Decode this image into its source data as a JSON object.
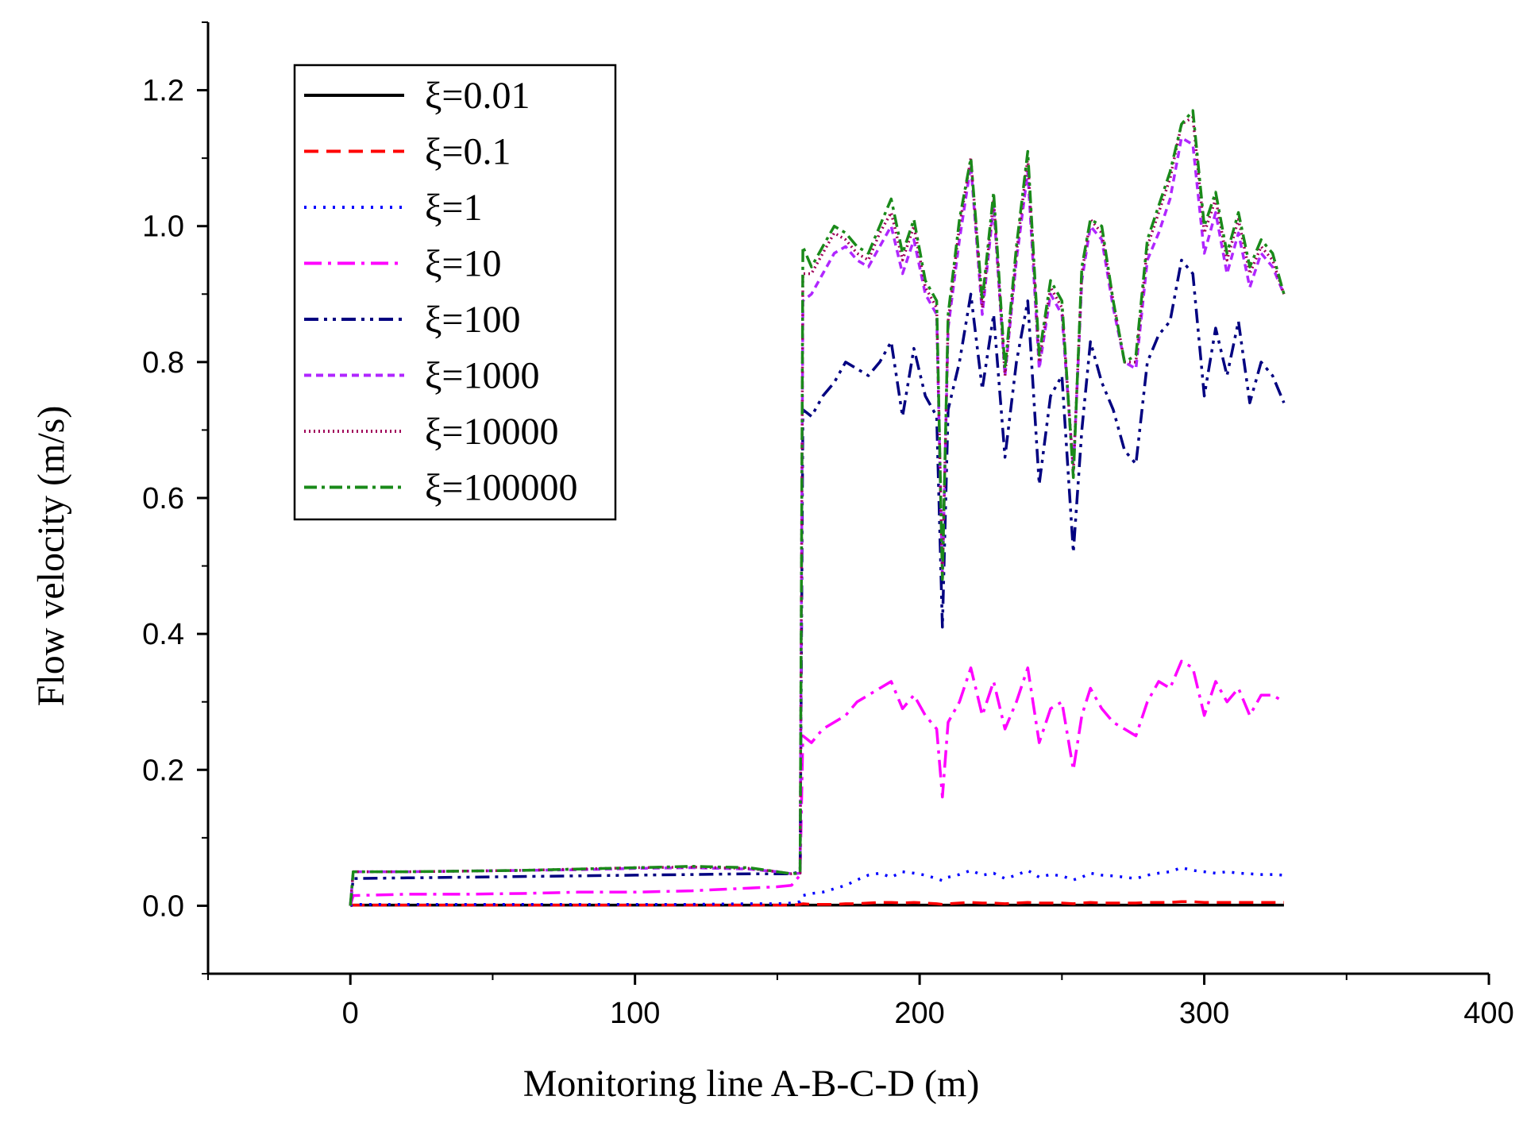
{
  "chart_data": {
    "type": "line",
    "title": "",
    "xlabel": "Monitoring line A-B-C-D (m)",
    "ylabel": "Flow velocity (m/s)",
    "xlim": [
      -50,
      400
    ],
    "ylim": [
      -0.1,
      1.3
    ],
    "xticks": [
      0,
      100,
      200,
      300,
      400
    ],
    "xtick_labels": [
      "0",
      "100",
      "200",
      "300",
      "400"
    ],
    "yticks": [
      0.0,
      0.2,
      0.4,
      0.6,
      0.8,
      1.0,
      1.2
    ],
    "ytick_labels": [
      "0.0",
      "0.2",
      "0.4",
      "0.6",
      "0.8",
      "1.0",
      "1.2"
    ],
    "legend_position": "top-left",
    "x": [
      0,
      1,
      20,
      40,
      60,
      80,
      100,
      120,
      140,
      150,
      155,
      158,
      159,
      162,
      166,
      170,
      174,
      178,
      182,
      186,
      190,
      194,
      198,
      202,
      206,
      208,
      210,
      214,
      218,
      222,
      226,
      230,
      234,
      238,
      242,
      246,
      250,
      254,
      257,
      260,
      264,
      268,
      272,
      276,
      280,
      284,
      288,
      292,
      296,
      300,
      304,
      308,
      312,
      316,
      320,
      324,
      328
    ],
    "series": [
      {
        "name": "ξ=0.01",
        "color": "#000000",
        "dash": "solid",
        "values": [
          0,
          0.001,
          0.001,
          0.001,
          0.001,
          0.001,
          0.001,
          0.001,
          0.001,
          0.001,
          0.001,
          0.001,
          0.001,
          0.001,
          0.001,
          0.001,
          0.001,
          0.001,
          0.001,
          0.001,
          0.001,
          0.001,
          0.001,
          0.001,
          0.001,
          0.001,
          0.001,
          0.001,
          0.001,
          0.001,
          0.001,
          0.001,
          0.001,
          0.001,
          0.001,
          0.001,
          0.001,
          0.001,
          0.001,
          0.001,
          0.001,
          0.001,
          0.001,
          0.001,
          0.001,
          0.001,
          0.001,
          0.001,
          0.001,
          0.001,
          0.001,
          0.001,
          0.001,
          0.001,
          0.001,
          0.001,
          0.001
        ]
      },
      {
        "name": "ξ=0.1",
        "color": "#ff0000",
        "dash": "dash",
        "values": [
          0,
          0.001,
          0.001,
          0.001,
          0.001,
          0.001,
          0.001,
          0.001,
          0.001,
          0.001,
          0.001,
          0.002,
          0.003,
          0.002,
          0.002,
          0.002,
          0.003,
          0.003,
          0.004,
          0.005,
          0.005,
          0.004,
          0.005,
          0.004,
          0.003,
          0.002,
          0.003,
          0.004,
          0.005,
          0.004,
          0.004,
          0.003,
          0.004,
          0.005,
          0.004,
          0.004,
          0.004,
          0.003,
          0.004,
          0.005,
          0.004,
          0.004,
          0.004,
          0.004,
          0.005,
          0.005,
          0.005,
          0.006,
          0.006,
          0.005,
          0.005,
          0.005,
          0.005,
          0.005,
          0.005,
          0.005,
          0.005
        ]
      },
      {
        "name": "ξ=1",
        "color": "#0000ff",
        "dash": "dot",
        "values": [
          0,
          0.002,
          0.002,
          0.002,
          0.002,
          0.002,
          0.002,
          0.002,
          0.003,
          0.003,
          0.004,
          0.006,
          0.015,
          0.018,
          0.02,
          0.025,
          0.03,
          0.038,
          0.045,
          0.048,
          0.042,
          0.05,
          0.048,
          0.045,
          0.04,
          0.037,
          0.042,
          0.046,
          0.052,
          0.045,
          0.048,
          0.04,
          0.045,
          0.052,
          0.042,
          0.046,
          0.044,
          0.038,
          0.042,
          0.048,
          0.045,
          0.044,
          0.042,
          0.04,
          0.045,
          0.048,
          0.05,
          0.056,
          0.052,
          0.05,
          0.048,
          0.05,
          0.048,
          0.047,
          0.046,
          0.046,
          0.045
        ]
      },
      {
        "name": "ξ=10",
        "color": "#ff00ff",
        "dash": "dashdot",
        "values": [
          0,
          0.015,
          0.017,
          0.017,
          0.018,
          0.02,
          0.02,
          0.022,
          0.026,
          0.028,
          0.03,
          0.045,
          0.25,
          0.24,
          0.26,
          0.27,
          0.28,
          0.3,
          0.31,
          0.32,
          0.33,
          0.29,
          0.31,
          0.28,
          0.26,
          0.16,
          0.27,
          0.3,
          0.35,
          0.28,
          0.33,
          0.26,
          0.3,
          0.35,
          0.24,
          0.29,
          0.3,
          0.2,
          0.28,
          0.32,
          0.29,
          0.27,
          0.26,
          0.25,
          0.3,
          0.33,
          0.32,
          0.36,
          0.35,
          0.28,
          0.33,
          0.3,
          0.32,
          0.28,
          0.31,
          0.31,
          0.3
        ]
      },
      {
        "name": "ξ=100",
        "color": "#000080",
        "dash": "dashdotdot",
        "values": [
          0,
          0.04,
          0.041,
          0.042,
          0.043,
          0.044,
          0.045,
          0.046,
          0.047,
          0.047,
          0.047,
          0.05,
          0.73,
          0.72,
          0.75,
          0.77,
          0.8,
          0.79,
          0.78,
          0.8,
          0.83,
          0.72,
          0.82,
          0.75,
          0.72,
          0.41,
          0.73,
          0.8,
          0.9,
          0.76,
          0.87,
          0.66,
          0.8,
          0.89,
          0.62,
          0.75,
          0.78,
          0.52,
          0.7,
          0.83,
          0.77,
          0.73,
          0.67,
          0.65,
          0.8,
          0.84,
          0.86,
          0.95,
          0.93,
          0.75,
          0.85,
          0.78,
          0.86,
          0.74,
          0.8,
          0.78,
          0.74
        ]
      },
      {
        "name": "ξ=1000",
        "color": "#b026ff",
        "dash": "shortdash",
        "values": [
          0,
          0.05,
          0.05,
          0.051,
          0.052,
          0.053,
          0.055,
          0.056,
          0.054,
          0.05,
          0.047,
          0.048,
          0.89,
          0.9,
          0.93,
          0.96,
          0.97,
          0.95,
          0.94,
          0.97,
          1.0,
          0.93,
          0.98,
          0.9,
          0.87,
          0.48,
          0.85,
          0.98,
          1.09,
          0.87,
          1.03,
          0.78,
          0.95,
          1.08,
          0.79,
          0.9,
          0.87,
          0.64,
          0.92,
          1.0,
          0.98,
          0.88,
          0.8,
          0.79,
          0.95,
          0.99,
          1.04,
          1.13,
          1.12,
          0.96,
          1.02,
          0.93,
          0.99,
          0.91,
          0.96,
          0.94,
          0.9
        ]
      },
      {
        "name": "ξ=10000",
        "color": "#a0005a",
        "dash": "dense",
        "values": [
          0,
          0.05,
          0.05,
          0.051,
          0.052,
          0.054,
          0.056,
          0.057,
          0.055,
          0.05,
          0.047,
          0.048,
          0.93,
          0.93,
          0.96,
          0.99,
          0.98,
          0.96,
          0.95,
          0.99,
          1.02,
          0.95,
          1.0,
          0.91,
          0.88,
          0.48,
          0.86,
          1.0,
          1.1,
          0.88,
          1.04,
          0.78,
          0.96,
          1.1,
          0.8,
          0.91,
          0.88,
          0.64,
          0.93,
          1.01,
          0.99,
          0.89,
          0.8,
          0.8,
          0.97,
          1.02,
          1.07,
          1.15,
          1.16,
          0.99,
          1.04,
          0.95,
          1.01,
          0.93,
          0.97,
          0.95,
          0.9
        ]
      },
      {
        "name": "ξ=100000",
        "color": "#1a8a1a",
        "dash": "dashdot2",
        "values": [
          0,
          0.05,
          0.05,
          0.051,
          0.052,
          0.054,
          0.056,
          0.058,
          0.056,
          0.05,
          0.047,
          0.048,
          0.97,
          0.94,
          0.97,
          1.0,
          0.99,
          0.97,
          0.96,
          1.0,
          1.04,
          0.96,
          1.01,
          0.92,
          0.89,
          0.48,
          0.87,
          1.01,
          1.1,
          0.89,
          1.05,
          0.79,
          0.97,
          1.11,
          0.81,
          0.92,
          0.89,
          0.63,
          0.94,
          1.01,
          1.0,
          0.89,
          0.8,
          0.81,
          0.98,
          1.03,
          1.08,
          1.15,
          1.17,
          1.0,
          1.05,
          0.96,
          1.02,
          0.94,
          0.98,
          0.96,
          0.9
        ]
      }
    ]
  }
}
